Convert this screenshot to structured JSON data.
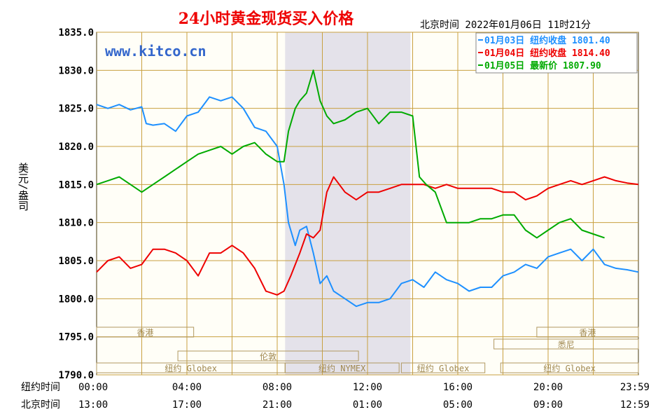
{
  "chart_data": {
    "type": "line",
    "title": "24小时黄金现货买入价格",
    "timestamp": "北京时间  2022年01月06日 11时21分",
    "watermark": "www.kitco.cn",
    "ylabel": "美元/盎司",
    "ylim": [
      1790,
      1835
    ],
    "yticks": [
      "1835.0",
      "1830.0",
      "1825.0",
      "1820.0",
      "1815.0",
      "1810.0",
      "1805.0",
      "1800.0",
      "1795.0",
      "1790.0"
    ],
    "x_row1_label": "纽约时间",
    "x_row2_label": "北京时间",
    "x_ticks_ny": [
      "00:00",
      "04:00",
      "08:00",
      "12:00",
      "16:00",
      "20:00",
      "23:59"
    ],
    "x_ticks_bj": [
      "13:00",
      "17:00",
      "21:00",
      "01:00",
      "05:00",
      "09:00",
      "12:59"
    ],
    "highlight_hours": [
      8.35,
      13.9
    ],
    "legend": [
      {
        "text": "01月03日  纽约收盘 1801.40",
        "color": "#1e90ff"
      },
      {
        "text": "01月04日  纽约收盘 1814.40",
        "color": "#ee0000"
      },
      {
        "text": "01月05日   最新价 1807.90",
        "color": "#00aa00"
      }
    ],
    "markets": [
      {
        "name": "香港",
        "row": 1,
        "start": 0.0,
        "end": 4.3
      },
      {
        "name": "香港",
        "row": 1,
        "start": 19.5,
        "end": 24.0
      },
      {
        "name": "悉尼",
        "row": 2,
        "start": 17.6,
        "end": 24.0
      },
      {
        "name": "伦敦",
        "row": 3,
        "start": 3.6,
        "end": 11.6
      },
      {
        "name": "纽约 Globex",
        "row": 4,
        "start": 0.0,
        "end": 8.35
      },
      {
        "name": "纽约 NYMEX",
        "row": 4,
        "start": 8.35,
        "end": 13.4
      },
      {
        "name": "纽约 Globex",
        "row": 4,
        "start": 13.5,
        "end": 17.2
      },
      {
        "name": "纽约 Globex",
        "row": 4,
        "start": 17.9,
        "end": 24.0
      }
    ],
    "series": [
      {
        "color": "#1e90ff",
        "x": [
          0,
          0.5,
          1,
          1.5,
          2,
          2.2,
          2.5,
          3,
          3.5,
          4,
          4.5,
          5,
          5.5,
          6,
          6.5,
          7,
          7.5,
          8,
          8.3,
          8.5,
          8.8,
          9,
          9.3,
          9.6,
          9.9,
          10.2,
          10.5,
          11,
          11.5,
          12,
          12.5,
          13,
          13.5,
          14,
          14.5,
          15,
          15.5,
          16,
          16.5,
          17,
          17.5,
          18,
          18.5,
          19,
          19.5,
          20,
          20.5,
          21,
          21.5,
          22,
          22.5,
          23,
          23.5,
          24
        ],
        "y": [
          1825.5,
          1825,
          1825.5,
          1824.8,
          1825.2,
          1823,
          1822.8,
          1823,
          1822,
          1824,
          1824.5,
          1826.5,
          1826,
          1826.5,
          1825,
          1822.5,
          1822,
          1820,
          1815,
          1810,
          1807,
          1809,
          1809.5,
          1806,
          1802,
          1803,
          1801,
          1800,
          1799,
          1799.5,
          1799.5,
          1800,
          1802,
          1802.5,
          1801.5,
          1803.5,
          1802.5,
          1802,
          1801,
          1801.5,
          1801.5,
          1803,
          1803.5,
          1804.5,
          1804,
          1805.5,
          1806,
          1806.5,
          1805,
          1806.5,
          1804.5,
          1804,
          1803.8,
          1803.5
        ]
      },
      {
        "color": "#ee0000",
        "x": [
          0,
          0.5,
          1,
          1.5,
          2,
          2.5,
          3,
          3.5,
          4,
          4.5,
          5,
          5.5,
          6,
          6.5,
          7,
          7.5,
          8,
          8.3,
          8.6,
          9,
          9.3,
          9.6,
          9.9,
          10.2,
          10.5,
          11,
          11.5,
          12,
          12.5,
          13,
          13.5,
          14,
          14.5,
          15,
          15.5,
          16,
          16.5,
          17,
          17.5,
          18,
          18.5,
          19,
          19.5,
          20,
          20.5,
          21,
          21.5,
          22,
          22.5,
          23,
          23.5,
          24
        ],
        "y": [
          1803.5,
          1805,
          1805.5,
          1804,
          1804.5,
          1806.5,
          1806.5,
          1806,
          1805,
          1803,
          1806,
          1806,
          1807,
          1806,
          1804,
          1801,
          1800.5,
          1801,
          1803,
          1806,
          1808.5,
          1808,
          1809,
          1814,
          1816,
          1814,
          1813,
          1814,
          1814,
          1814.5,
          1815,
          1815,
          1815,
          1814.5,
          1815,
          1814.5,
          1814.5,
          1814.5,
          1814.5,
          1814,
          1814,
          1813,
          1813.5,
          1814.5,
          1815,
          1815.5,
          1815,
          1815.5,
          1816,
          1815.5,
          1815.2,
          1815
        ]
      },
      {
        "color": "#00aa00",
        "x": [
          0,
          0.5,
          1,
          1.5,
          2,
          2.5,
          3,
          3.5,
          4,
          4.5,
          5,
          5.5,
          6,
          6.5,
          7,
          7.5,
          8,
          8.3,
          8.5,
          8.8,
          9,
          9.3,
          9.6,
          9.9,
          10.2,
          10.5,
          11,
          11.5,
          12,
          12.5,
          13,
          13.5,
          14,
          14.3,
          14.6,
          15,
          15.5,
          16,
          16.5,
          17,
          17.5,
          18,
          18.5,
          19,
          19.5,
          20,
          20.5,
          21,
          21.5,
          22,
          22.5
        ],
        "y": [
          1815,
          1815.5,
          1816,
          1815,
          1814,
          1815,
          1816,
          1817,
          1818,
          1819,
          1819.5,
          1820,
          1819,
          1820,
          1820.5,
          1819,
          1818,
          1818,
          1822,
          1825,
          1826,
          1827,
          1830,
          1826,
          1824,
          1823,
          1823.5,
          1824.5,
          1825,
          1823,
          1824.5,
          1824.5,
          1824,
          1816,
          1815,
          1814,
          1810,
          1810,
          1810,
          1810.5,
          1810.5,
          1811,
          1811,
          1809,
          1808,
          1809,
          1810,
          1810.5,
          1809,
          1808.5,
          1808
        ]
      }
    ]
  }
}
